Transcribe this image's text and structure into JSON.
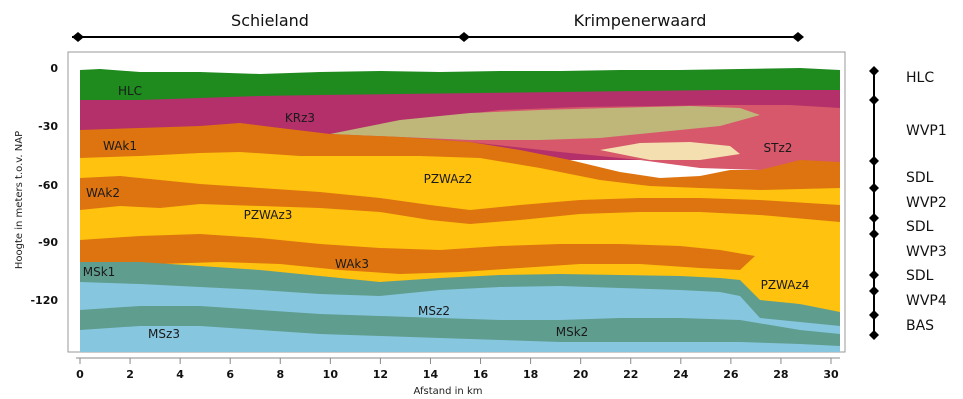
{
  "regions": [
    {
      "label": "Schieland"
    },
    {
      "label": "Krimpenerwaard"
    }
  ],
  "axes": {
    "x_label": "Afstand in km",
    "y_label": "Hoogte in meters t.o.v. NAP",
    "x_ticks": [
      "0",
      "2",
      "4",
      "6",
      "8",
      "10",
      "12",
      "14",
      "16",
      "18",
      "20",
      "22",
      "24",
      "26",
      "28",
      "30"
    ],
    "y_ticks": [
      "0",
      "-30",
      "-60",
      "-90",
      "-120"
    ]
  },
  "units": [
    {
      "label": "HLC",
      "color": "#1e8a1e"
    },
    {
      "label": "KRz3",
      "color": "#b8336a"
    },
    {
      "label": "WAk1",
      "color": "#e0760c"
    },
    {
      "label": "PZWAz2",
      "color": "#ffc20e"
    },
    {
      "label": "WAk2",
      "color": "#e0760c"
    },
    {
      "label": "PZWAz3",
      "color": "#ffc20e"
    },
    {
      "label": "WAk3",
      "color": "#e0760c"
    },
    {
      "label": "STz2",
      "color": "#d9535e"
    },
    {
      "label": "MSk1",
      "color": "#5f9e8f"
    },
    {
      "label": "MSz2",
      "color": "#86c5e0"
    },
    {
      "label": "PZWAz4",
      "color": "#ffc20e"
    },
    {
      "label": "MSk2",
      "color": "#5f9e8f"
    },
    {
      "label": "MSz3",
      "color": "#86c5e0"
    }
  ],
  "legend": [
    {
      "label": "HLC"
    },
    {
      "label": "WVP1"
    },
    {
      "label": "SDL"
    },
    {
      "label": "WVP2"
    },
    {
      "label": "SDL"
    },
    {
      "label": "WVP3"
    },
    {
      "label": "SDL"
    },
    {
      "label": "WVP4"
    },
    {
      "label": "BAS"
    }
  ]
}
